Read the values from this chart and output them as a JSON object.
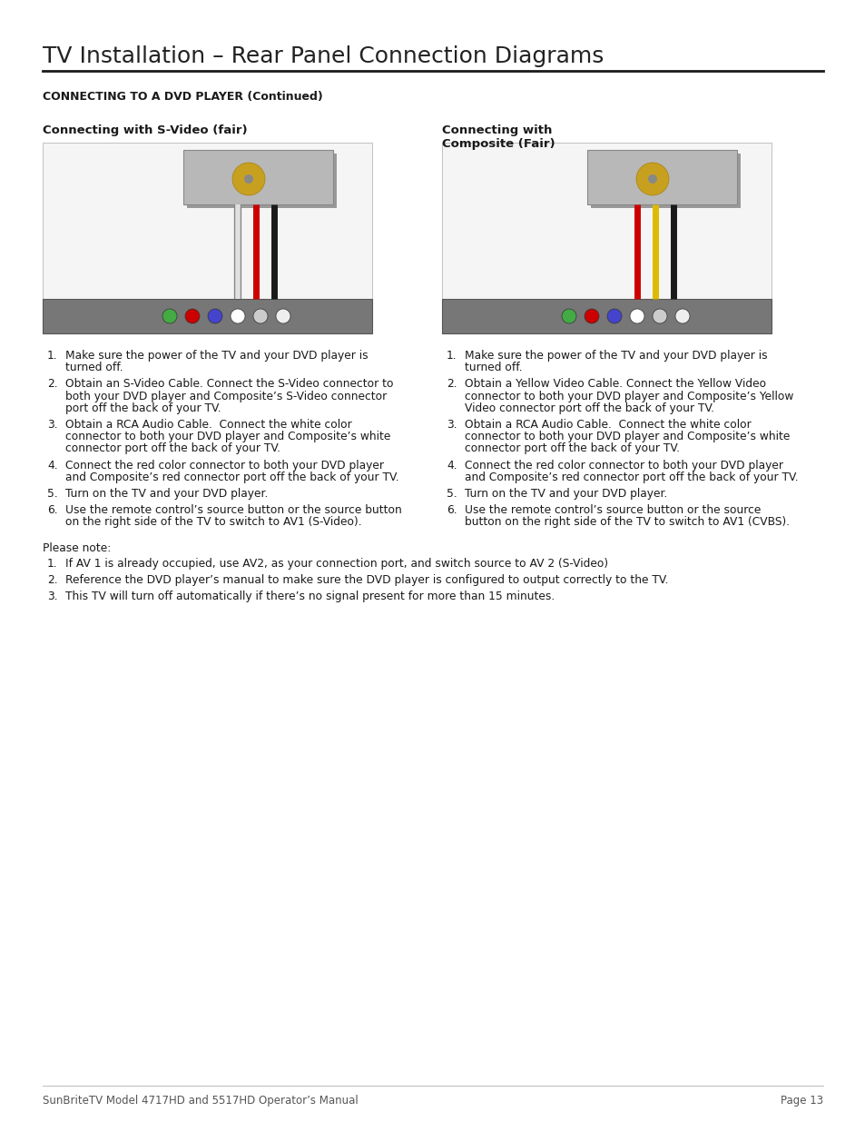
{
  "title": "TV Installation – Rear Panel Connection Diagrams",
  "section_header": "CONNECTING TO A DVD PLAYER (Continued)",
  "left_label": "Connecting with S-Video (fair)",
  "right_label": "Connecting with\nComposite (Fair)",
  "left_steps": [
    [
      "Make sure the power of the TV and your DVD player is",
      "turned off."
    ],
    [
      "Obtain an S-Video Cable. Connect the S-Video connector to",
      "both your DVD player and Composite’s S-Video connector",
      "port off the back of your TV."
    ],
    [
      "Obtain a RCA Audio Cable.  Connect the white color",
      "connector to both your DVD player and Composite’s white",
      "connector port off the back of your TV."
    ],
    [
      "Connect the red color connector to both your DVD player",
      "and Composite’s red connector port off the back of your TV."
    ],
    [
      "Turn on the TV and your DVD player."
    ],
    [
      "Use the remote control’s source button or the source button",
      "on the right side of the TV to switch to AV1 (S-Video)."
    ]
  ],
  "right_steps": [
    [
      "Make sure the power of the TV and your DVD player is",
      "turned off."
    ],
    [
      "Obtain a Yellow Video Cable. Connect the Yellow Video",
      "connector to both your DVD player and Composite’s Yellow",
      "Video connector port off the back of your TV."
    ],
    [
      "Obtain a RCA Audio Cable.  Connect the white color",
      "connector to both your DVD player and Composite’s white",
      "connector port off the back of your TV."
    ],
    [
      "Connect the red color connector to both your DVD player",
      "and Composite’s red connector port off the back of your TV."
    ],
    [
      "Turn on the TV and your DVD player."
    ],
    [
      "Use the remote control’s source button or the source",
      "button on the right side of the TV to switch to AV1 (CVBS)."
    ]
  ],
  "please_note_header": "Please note:",
  "please_note_items": [
    [
      "If AV 1 is already occupied, use AV2, as your connection port, and switch source to AV 2 (S-Video)"
    ],
    [
      "Reference the DVD player’s manual to make sure the DVD player is configured to output correctly to the TV."
    ],
    [
      "This TV will turn off automatically if there’s no signal present for more than 15 minutes."
    ]
  ],
  "footer_left": "SunBriteTV Model 4717HD and 5517HD Operator’s Manual",
  "footer_right": "Page 13",
  "bg_color": "#ffffff",
  "text_color": "#1a1a1a",
  "title_fontsize": 18,
  "section_fontsize": 9,
  "label_fontsize": 9.5,
  "body_fontsize": 8.8,
  "footer_fontsize": 8.5
}
